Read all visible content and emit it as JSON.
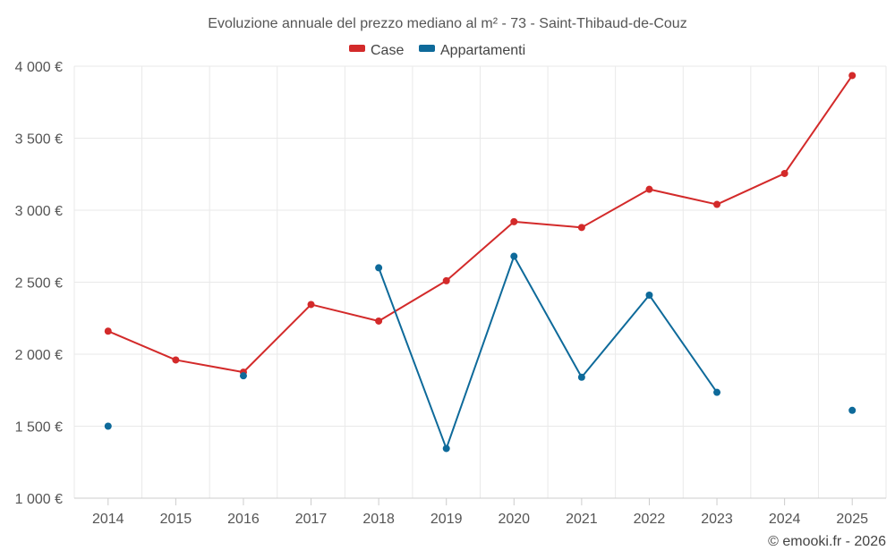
{
  "chart_data": {
    "type": "line",
    "title": "Evoluzione annuale del prezzo mediano al m² - 73 - Saint-Thibaud-de-Couz",
    "categories": [
      "2014",
      "2015",
      "2016",
      "2017",
      "2018",
      "2019",
      "2020",
      "2021",
      "2022",
      "2023",
      "2024",
      "2025"
    ],
    "ylim": [
      1000,
      4000
    ],
    "yticks": [
      1000,
      1500,
      2000,
      2500,
      3000,
      3500,
      4000
    ],
    "ytick_labels": [
      "1 000 €",
      "1 500 €",
      "2 000 €",
      "2 500 €",
      "3 000 €",
      "3 500 €",
      "4 000 €"
    ],
    "xlabel": "",
    "ylabel": "",
    "grid": true,
    "legend_position": "top-center",
    "series": [
      {
        "name": "Case",
        "color": "#d32a2a",
        "values": [
          2160,
          1960,
          1875,
          2345,
          2230,
          2510,
          2920,
          2880,
          3145,
          3040,
          3255,
          3935
        ]
      },
      {
        "name": "Appartamenti",
        "color": "#0e6a9a",
        "values": [
          1500,
          null,
          1850,
          null,
          2600,
          1345,
          2680,
          1840,
          2410,
          1735,
          null,
          1610
        ]
      }
    ]
  },
  "credit": "© emooki.fr - 2026"
}
